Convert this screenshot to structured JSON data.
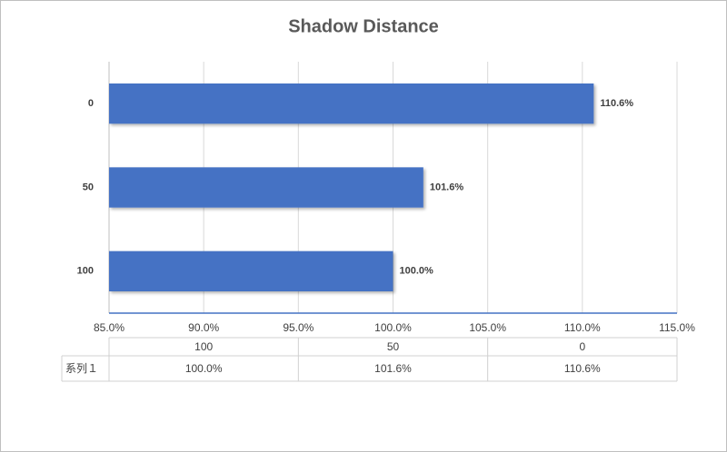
{
  "chart_data": {
    "type": "barh",
    "title": "Shadow Distance",
    "categories": [
      "100",
      "50",
      "0"
    ],
    "series": [
      {
        "name": "系列１",
        "color": "#4472c4",
        "values": [
          100.0,
          101.6,
          110.6
        ],
        "value_labels": [
          "100.0%",
          "101.6%",
          "110.6%"
        ]
      }
    ],
    "xlim": [
      85,
      115
    ],
    "xticks": [
      {
        "value": 85,
        "label": "85.0%"
      },
      {
        "value": 90,
        "label": "90.0%"
      },
      {
        "value": 95,
        "label": "95.0%"
      },
      {
        "value": 100,
        "label": "100.0%"
      },
      {
        "value": 105,
        "label": "105.0%"
      },
      {
        "value": 110,
        "label": "110.0%"
      },
      {
        "value": 115,
        "label": "115.0%"
      }
    ],
    "grid": true
  }
}
